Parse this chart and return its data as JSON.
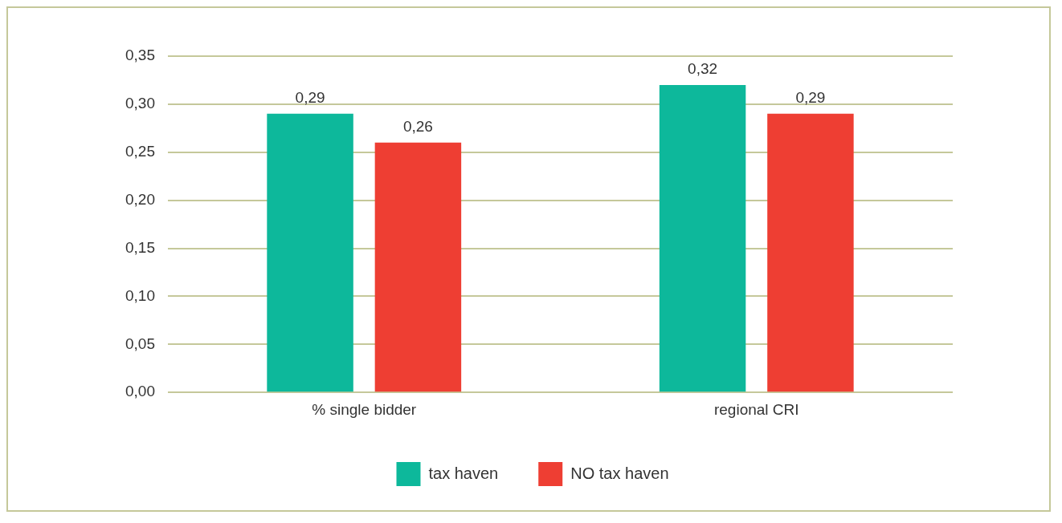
{
  "chart_data": {
    "type": "bar",
    "categories": [
      "% single bidder",
      "regional CRI"
    ],
    "series": [
      {
        "name": "tax haven",
        "color": "#0db89b",
        "values": [
          0.29,
          0.32
        ],
        "value_labels": [
          "0,29",
          "0,32"
        ]
      },
      {
        "name": "NO tax haven",
        "color": "#ee3e33",
        "values": [
          0.26,
          0.29
        ],
        "value_labels": [
          "0,26",
          "0,29"
        ]
      }
    ],
    "ylim": [
      0,
      0.35
    ],
    "yticks": [
      {
        "value": 0,
        "label": "0,00"
      },
      {
        "value": 0.05,
        "label": "0,05"
      },
      {
        "value": 0.1,
        "label": "0,10"
      },
      {
        "value": 0.15,
        "label": "0,15"
      },
      {
        "value": 0.2,
        "label": "0,20"
      },
      {
        "value": 0.25,
        "label": "0,25"
      },
      {
        "value": 0.3,
        "label": "0,30"
      },
      {
        "value": 0.35,
        "label": "0,35"
      }
    ],
    "grid": "y",
    "legend": "bottom"
  }
}
